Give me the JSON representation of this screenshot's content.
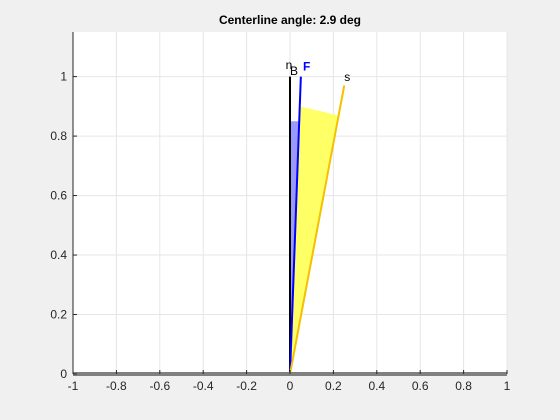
{
  "chart_data": {
    "type": "line",
    "title": "Centerline angle: 2.9 deg",
    "xlabel": "",
    "ylabel": "",
    "xlim": [
      -1,
      1
    ],
    "ylim": [
      0,
      1.15
    ],
    "grid": true,
    "xticks": [
      -1,
      -0.8,
      -0.6,
      -0.4,
      -0.2,
      0,
      0.2,
      0.4,
      0.6,
      0.8,
      1
    ],
    "xtick_labels": [
      "-1",
      "-0.8",
      "-0.6",
      "-0.4",
      "-0.2",
      "0",
      "0.2",
      "0.4",
      "0.6",
      "0.8",
      "1"
    ],
    "yticks": [
      0,
      0.2,
      0.4,
      0.6,
      0.8,
      1
    ],
    "ytick_labels": [
      "0",
      "0.2",
      "0.4",
      "0.6",
      "0.8",
      "1"
    ],
    "lines": [
      {
        "id": "nB",
        "color": "#000000",
        "x": [
          0,
          0
        ],
        "y": [
          0,
          1.0
        ]
      },
      {
        "id": "F",
        "color": "#0000ff",
        "x": [
          0,
          0.05
        ],
        "y": [
          0,
          1.0
        ]
      },
      {
        "id": "s",
        "color": "#f5c000",
        "x": [
          0,
          0.25
        ],
        "y": [
          0,
          0.97
        ]
      }
    ],
    "patches": [
      {
        "id": "blue-wedge",
        "color": "#9999ff",
        "x": [
          0,
          0,
          0.043,
          0
        ],
        "y": [
          0,
          0.85,
          0.85,
          0
        ]
      },
      {
        "id": "yellow-wedge",
        "color": "#ffff66",
        "x": [
          0,
          0.045,
          0.22,
          0
        ],
        "y": [
          0,
          0.9,
          0.87,
          0
        ]
      }
    ],
    "annotations": [
      {
        "id": "n",
        "text": "n",
        "x": -0.02,
        "y": 1.025,
        "color": "#000000",
        "bold": false
      },
      {
        "id": "B",
        "text": "B",
        "x": 0.0,
        "y": 1.005,
        "color": "#000000",
        "bold": false
      },
      {
        "id": "F",
        "text": "F",
        "x": 0.06,
        "y": 1.02,
        "color": "#0000ff",
        "bold": true
      },
      {
        "id": "s",
        "text": "s",
        "x": 0.25,
        "y": 0.985,
        "color": "#000000",
        "bold": false
      }
    ],
    "colors": {
      "background": "#f0f0f0",
      "axes": "#ffffff",
      "grid": "#e6e6e6",
      "spine": "#262626"
    }
  }
}
